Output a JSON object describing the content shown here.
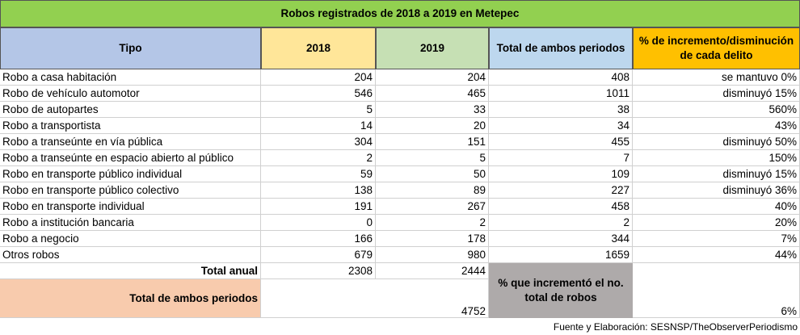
{
  "title": "Robos registrados de 2018 a 2019 en Metepec",
  "table": {
    "header": [
      "Tipo",
      "2018",
      "2019",
      "Total de ambos periodos",
      "% de incremento/disminución de cada delito"
    ],
    "rows": [
      [
        "Robo a casa habitación",
        204,
        204,
        408,
        "se mantuvo 0%"
      ],
      [
        "Robo de vehículo automotor",
        546,
        465,
        1011,
        "disminuyó 15%"
      ],
      [
        "Robo de autopartes",
        5,
        33,
        38,
        "560%"
      ],
      [
        "Robo a transportista",
        14,
        20,
        34,
        "43%"
      ],
      [
        "Robo a transeúnte en vía pública",
        304,
        151,
        455,
        "disminuyó 50%"
      ],
      [
        "Robo a transeúnte en espacio abierto al público",
        2,
        5,
        7,
        "150%"
      ],
      [
        "Robo en transporte público individual",
        59,
        50,
        109,
        "disminuyó 15%"
      ],
      [
        "Robo en transporte público colectivo",
        138,
        89,
        227,
        "disminuyó 36%"
      ],
      [
        "Robo en transporte individual",
        191,
        267,
        458,
        "40%"
      ],
      [
        "Robo a institución bancaria",
        0,
        2,
        2,
        "20%"
      ],
      [
        "Robo a negocio",
        166,
        178,
        344,
        "7%"
      ],
      [
        "Otros robos",
        679,
        980,
        1659,
        "44%"
      ]
    ]
  },
  "totals": {
    "label": "Total anual",
    "values": [
      2308,
      2444
    ]
  },
  "summary": {
    "label": "Total de ambos periodos",
    "value": 4752,
    "pct_label": "% que incrementó el no. total de robos",
    "pct_value": "6%"
  },
  "source": "Fuente y Elaboración: SESNSP/TheObserverPeriodismo"
}
